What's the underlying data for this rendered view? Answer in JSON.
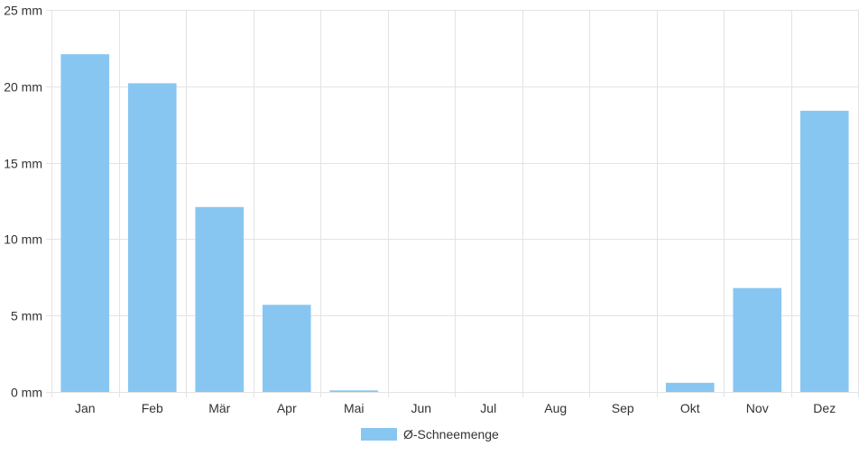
{
  "chart_data": {
    "type": "bar",
    "categories": [
      "Jan",
      "Feb",
      "Mär",
      "Apr",
      "Mai",
      "Jun",
      "Jul",
      "Aug",
      "Sep",
      "Okt",
      "Nov",
      "Dez"
    ],
    "series": [
      {
        "name": "Ø-Schneemenge",
        "values": [
          22.1,
          20.2,
          12.1,
          5.7,
          0.1,
          0,
          0,
          0,
          0,
          0.6,
          6.8,
          18.4
        ],
        "color": "#88c6f2"
      }
    ],
    "ylim": [
      0,
      25
    ],
    "yticks": [
      0,
      5,
      10,
      15,
      20,
      25
    ],
    "ytick_labels": [
      "0 mm",
      "5 mm",
      "10 mm",
      "15 mm",
      "20 mm",
      "25 mm"
    ],
    "grid": true,
    "legend_position": "bottom-center",
    "grid_color": "#e3e3e3",
    "text_color": "#333333"
  }
}
